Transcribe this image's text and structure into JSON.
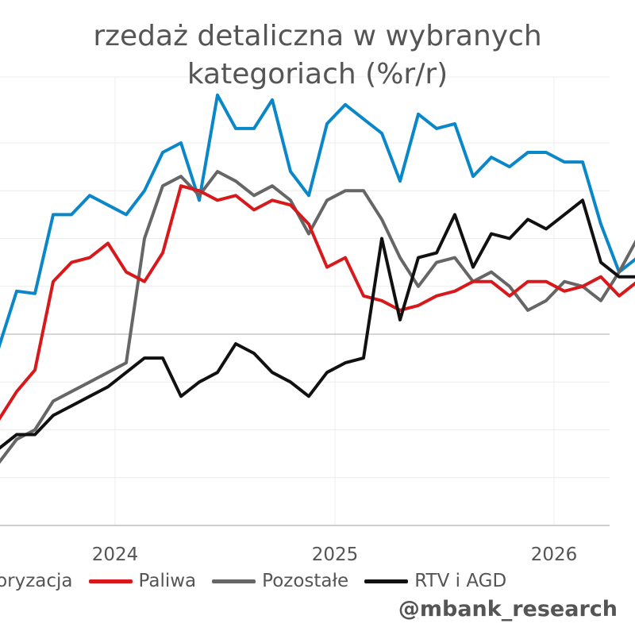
{
  "chart_data": {
    "type": "line",
    "title": "rzedaż detaliczna w wybranych\nkategoriach (%r/r)",
    "x_ticks": [
      "2024",
      "2025",
      "2026"
    ],
    "grid": true,
    "legend_position": "bottom",
    "series": [
      {
        "name": "otoryzacja",
        "color": "#0a87c8",
        "values": [
          -3,
          9,
          8.5,
          25,
          25,
          29,
          27,
          25,
          30,
          38,
          40,
          28,
          50,
          43,
          43,
          49,
          34,
          29,
          44,
          48,
          45,
          42,
          32,
          46,
          43,
          44,
          33,
          37,
          35,
          38,
          38,
          36,
          36,
          23,
          13,
          16,
          21
        ]
      },
      {
        "name": "Paliwa",
        "color": "#d7191c",
        "values": [
          -18,
          -12,
          -7.5,
          11,
          15,
          16,
          19,
          13,
          11,
          17,
          31,
          30,
          28,
          29,
          26,
          28,
          27,
          23,
          14,
          16,
          8,
          7,
          5,
          6,
          8,
          9,
          11,
          11,
          8,
          11,
          11,
          9,
          10,
          12,
          8,
          11,
          25
        ]
      },
      {
        "name": "Pozostałe",
        "color": "#666666",
        "values": [
          -27,
          -22,
          -20,
          -14,
          -12,
          -10,
          -8,
          -6,
          20,
          31,
          33,
          29,
          34,
          32,
          29,
          31,
          28,
          21,
          28,
          30,
          30,
          24,
          16,
          10,
          15,
          16,
          11,
          13,
          10,
          5,
          7,
          11,
          10,
          7,
          13,
          20,
          21
        ]
      },
      {
        "name": "RTV i AGD",
        "color": "#111111",
        "values": [
          -24,
          -21,
          -21,
          -17,
          -15,
          -13,
          -11,
          -8,
          -5,
          -5,
          -13,
          -10,
          -8,
          -2,
          -4,
          -8,
          -10,
          -13,
          -8,
          -6,
          -5,
          20,
          3,
          16,
          17,
          25,
          14,
          21,
          20,
          24,
          22,
          25,
          28,
          15,
          12,
          12,
          12
        ]
      }
    ],
    "annotation": "@mbank_research"
  }
}
